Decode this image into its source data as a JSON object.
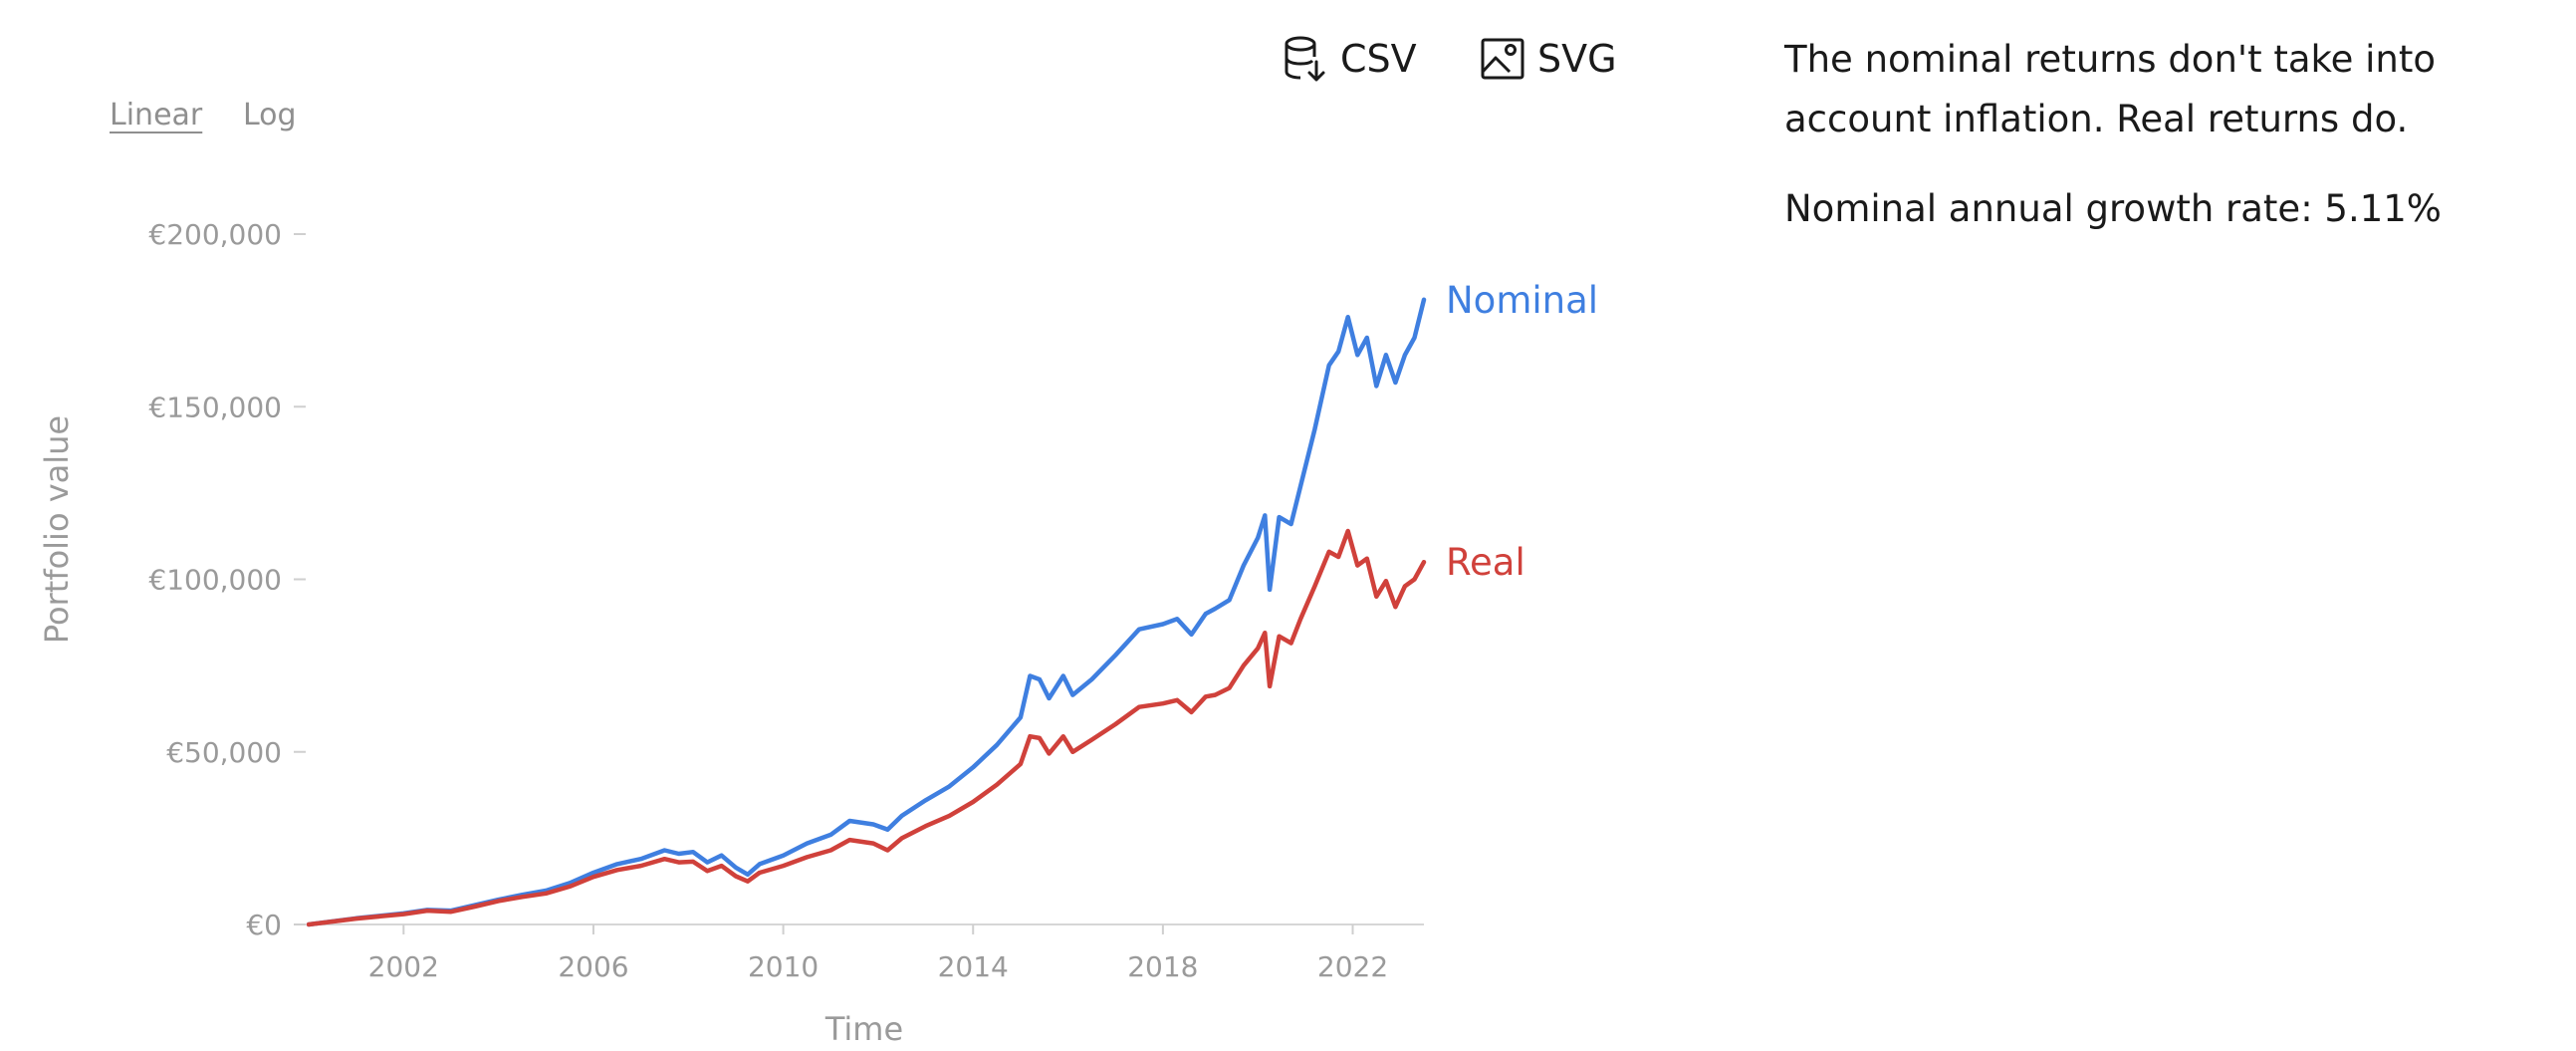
{
  "toolbar": {
    "scale_linear": "Linear",
    "scale_log": "Log",
    "active_scale": "Linear",
    "csv_label": "CSV",
    "svg_label": "SVG"
  },
  "side_panel": {
    "text": "The nominal returns don't take into account inflation. Real returns do.",
    "growth_label": "Nominal annual growth rate: 5.11%"
  },
  "chart_data": {
    "type": "line",
    "xlabel": "Time",
    "ylabel": "Portfolio value",
    "xlim": [
      2000.0,
      2023.5
    ],
    "ylim": [
      0,
      200000
    ],
    "x_ticks": [
      2002,
      2006,
      2010,
      2014,
      2018,
      2022
    ],
    "y_ticks": [
      0,
      50000,
      100000,
      150000,
      200000
    ],
    "y_tick_labels": [
      "€0",
      "€50,000",
      "€100,000",
      "€150,000",
      "€200,000"
    ],
    "grid": false,
    "series": [
      {
        "name": "Nominal",
        "color": "#3f7fe0",
        "points": [
          [
            2000.0,
            0
          ],
          [
            2001.0,
            1800
          ],
          [
            2002.0,
            3200
          ],
          [
            2002.5,
            4200
          ],
          [
            2003.0,
            4000
          ],
          [
            2003.5,
            5600
          ],
          [
            2004.0,
            7200
          ],
          [
            2004.5,
            8600
          ],
          [
            2005.0,
            9800
          ],
          [
            2005.5,
            12000
          ],
          [
            2006.0,
            15000
          ],
          [
            2006.5,
            17500
          ],
          [
            2007.0,
            19000
          ],
          [
            2007.5,
            21500
          ],
          [
            2007.8,
            20500
          ],
          [
            2008.1,
            21000
          ],
          [
            2008.4,
            18000
          ],
          [
            2008.7,
            20000
          ],
          [
            2009.0,
            16500
          ],
          [
            2009.25,
            14500
          ],
          [
            2009.5,
            17500
          ],
          [
            2010.0,
            20000
          ],
          [
            2010.5,
            23500
          ],
          [
            2011.0,
            26000
          ],
          [
            2011.4,
            30000
          ],
          [
            2011.9,
            29000
          ],
          [
            2012.2,
            27500
          ],
          [
            2012.5,
            31500
          ],
          [
            2013.0,
            36000
          ],
          [
            2013.5,
            40000
          ],
          [
            2014.0,
            45500
          ],
          [
            2014.5,
            52000
          ],
          [
            2015.0,
            60000
          ],
          [
            2015.2,
            72000
          ],
          [
            2015.4,
            71000
          ],
          [
            2015.6,
            65500
          ],
          [
            2015.9,
            72000
          ],
          [
            2016.1,
            66500
          ],
          [
            2016.5,
            71000
          ],
          [
            2017.0,
            78000
          ],
          [
            2017.5,
            85500
          ],
          [
            2018.0,
            87000
          ],
          [
            2018.3,
            88500
          ],
          [
            2018.6,
            84000
          ],
          [
            2018.9,
            90000
          ],
          [
            2019.1,
            91500
          ],
          [
            2019.4,
            94000
          ],
          [
            2019.7,
            104000
          ],
          [
            2020.0,
            112000
          ],
          [
            2020.15,
            118500
          ],
          [
            2020.25,
            97000
          ],
          [
            2020.45,
            118000
          ],
          [
            2020.7,
            116000
          ],
          [
            2020.9,
            127000
          ],
          [
            2021.2,
            143500
          ],
          [
            2021.5,
            162000
          ],
          [
            2021.7,
            166000
          ],
          [
            2021.9,
            176000
          ],
          [
            2022.1,
            165000
          ],
          [
            2022.3,
            170000
          ],
          [
            2022.5,
            156000
          ],
          [
            2022.7,
            165000
          ],
          [
            2022.9,
            157000
          ],
          [
            2023.1,
            165000
          ],
          [
            2023.3,
            170000
          ],
          [
            2023.5,
            181000
          ]
        ]
      },
      {
        "name": "Real",
        "color": "#d0413b",
        "points": [
          [
            2000.0,
            0
          ],
          [
            2001.0,
            1700
          ],
          [
            2002.0,
            3000
          ],
          [
            2002.5,
            4000
          ],
          [
            2003.0,
            3700
          ],
          [
            2003.5,
            5200
          ],
          [
            2004.0,
            6800
          ],
          [
            2004.5,
            8000
          ],
          [
            2005.0,
            9000
          ],
          [
            2005.5,
            11000
          ],
          [
            2006.0,
            13800
          ],
          [
            2006.5,
            15800
          ],
          [
            2007.0,
            17000
          ],
          [
            2007.5,
            19000
          ],
          [
            2007.8,
            18000
          ],
          [
            2008.1,
            18200
          ],
          [
            2008.4,
            15500
          ],
          [
            2008.7,
            17000
          ],
          [
            2009.0,
            14000
          ],
          [
            2009.25,
            12500
          ],
          [
            2009.5,
            15000
          ],
          [
            2010.0,
            17000
          ],
          [
            2010.5,
            19500
          ],
          [
            2011.0,
            21500
          ],
          [
            2011.4,
            24500
          ],
          [
            2011.9,
            23500
          ],
          [
            2012.2,
            21500
          ],
          [
            2012.5,
            25000
          ],
          [
            2013.0,
            28500
          ],
          [
            2013.5,
            31500
          ],
          [
            2014.0,
            35500
          ],
          [
            2014.5,
            40500
          ],
          [
            2015.0,
            46500
          ],
          [
            2015.2,
            54500
          ],
          [
            2015.4,
            54000
          ],
          [
            2015.6,
            49500
          ],
          [
            2015.9,
            54500
          ],
          [
            2016.1,
            50000
          ],
          [
            2016.5,
            53500
          ],
          [
            2017.0,
            58000
          ],
          [
            2017.5,
            63000
          ],
          [
            2018.0,
            64000
          ],
          [
            2018.3,
            65000
          ],
          [
            2018.6,
            61500
          ],
          [
            2018.9,
            66000
          ],
          [
            2019.1,
            66500
          ],
          [
            2019.4,
            68500
          ],
          [
            2019.7,
            75000
          ],
          [
            2020.0,
            80000
          ],
          [
            2020.15,
            84500
          ],
          [
            2020.25,
            69000
          ],
          [
            2020.45,
            83500
          ],
          [
            2020.7,
            81500
          ],
          [
            2020.9,
            88500
          ],
          [
            2021.2,
            98000
          ],
          [
            2021.5,
            108000
          ],
          [
            2021.7,
            106500
          ],
          [
            2021.9,
            114000
          ],
          [
            2022.1,
            104000
          ],
          [
            2022.3,
            106000
          ],
          [
            2022.5,
            95000
          ],
          [
            2022.7,
            99500
          ],
          [
            2022.9,
            92000
          ],
          [
            2023.1,
            98000
          ],
          [
            2023.3,
            100000
          ],
          [
            2023.5,
            105000
          ]
        ]
      }
    ]
  }
}
